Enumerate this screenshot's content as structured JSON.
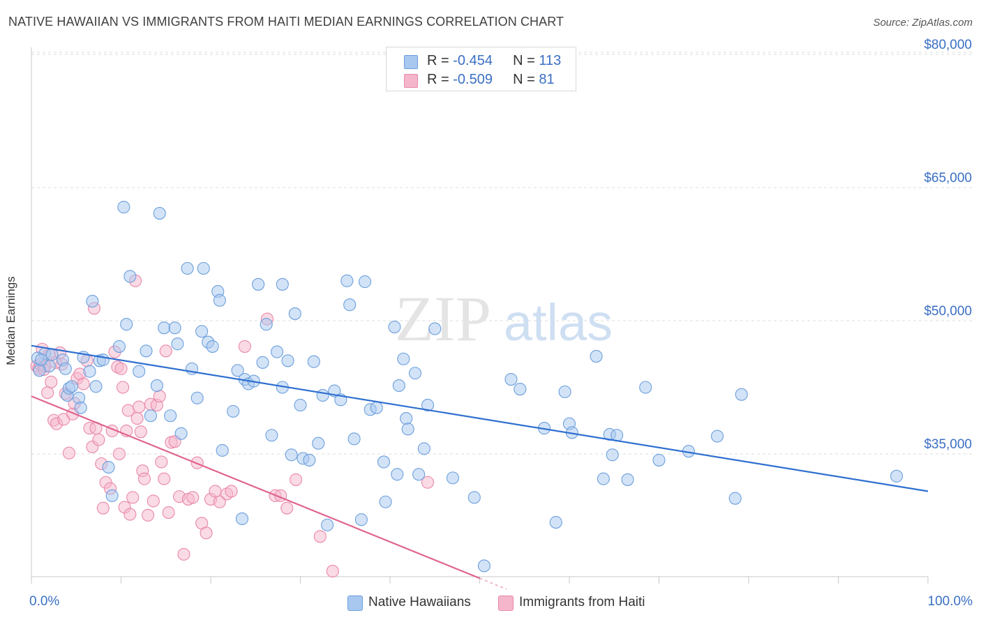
{
  "header": {
    "title": "NATIVE HAWAIIAN VS IMMIGRANTS FROM HAITI MEDIAN EARNINGS CORRELATION CHART",
    "source": "Source: ZipAtlas.com"
  },
  "watermark": {
    "zip": "ZIP",
    "atlas": "atlas"
  },
  "legend_top": [
    {
      "r_label": "R = ",
      "r_value": "-0.454",
      "n_label": "N = ",
      "n_value": "113",
      "color": "#a8c8f0"
    },
    {
      "r_label": "R = ",
      "r_value": "-0.509",
      "n_label": "N = ",
      "n_value": "81",
      "color": "#f5b6cb"
    }
  ],
  "legend_bottom": [
    {
      "label": "Native Hawaiians",
      "color": "#a8c8f0"
    },
    {
      "label": "Immigrants from Haiti",
      "color": "#f5b6cb"
    }
  ],
  "colors": {
    "blue_fill": "#a8c8f0",
    "blue_stroke": "#6b9fdc",
    "blue_line": "#2f6fd0",
    "pink_fill": "#f5b6cb",
    "pink_stroke": "#e888a8",
    "pink_line": "#e0648e",
    "axis_label": "#3a6fc4",
    "grid": "#dcdcdc"
  },
  "chart_data": {
    "type": "scatter",
    "title": "NATIVE HAWAIIAN VS IMMIGRANTS FROM HAITI MEDIAN EARNINGS CORRELATION CHART",
    "xlabel": "",
    "ylabel": "Median Earnings",
    "x_tick_labels": [
      "0.0%",
      "100.0%"
    ],
    "y_tick_labels": [
      "$35,000",
      "$50,000",
      "$65,000",
      "$80,000"
    ],
    "y_ticks": [
      35000,
      50000,
      65000,
      80000
    ],
    "xlim": [
      0,
      100
    ],
    "ylim": [
      20000,
      82500
    ],
    "grid": true,
    "legend_position": "top-center",
    "series": [
      {
        "name": "Native Hawaiians",
        "r": -0.454,
        "n": 113,
        "trend": {
          "x": [
            0,
            100
          ],
          "y": [
            47200,
            30800
          ]
        },
        "points": [
          [
            1.5,
            46.3
          ],
          [
            2,
            44.9
          ],
          [
            2.3,
            46.2
          ],
          [
            3.5,
            45.6
          ],
          [
            3.8,
            44.6
          ],
          [
            4,
            41.6
          ],
          [
            4.2,
            42.4
          ],
          [
            4.5,
            42.6
          ],
          [
            5.3,
            41.3
          ],
          [
            5.5,
            40.2
          ],
          [
            5.8,
            45.9
          ],
          [
            6.5,
            44.3
          ],
          [
            6.8,
            52.2
          ],
          [
            7.2,
            42.6
          ],
          [
            7.6,
            45.5
          ],
          [
            8,
            45.6
          ],
          [
            8.6,
            33.5
          ],
          [
            9,
            30.3
          ],
          [
            9.8,
            47.1
          ],
          [
            10.3,
            62.8
          ],
          [
            10.6,
            49.6
          ],
          [
            11,
            55.0
          ],
          [
            12,
            44.3
          ],
          [
            12.8,
            46.6
          ],
          [
            13.3,
            39.3
          ],
          [
            14,
            42.7
          ],
          [
            14.3,
            62.1
          ],
          [
            14.8,
            49.2
          ],
          [
            15.5,
            39.3
          ],
          [
            16,
            49.2
          ],
          [
            16.3,
            47.4
          ],
          [
            16.7,
            37.3
          ],
          [
            17.4,
            55.9
          ],
          [
            17.9,
            44.6
          ],
          [
            18.5,
            41.3
          ],
          [
            19,
            48.8
          ],
          [
            19.2,
            55.9
          ],
          [
            19.7,
            47.6
          ],
          [
            20.2,
            47.1
          ],
          [
            20.8,
            53.3
          ],
          [
            21,
            52.3
          ],
          [
            21.3,
            35.4
          ],
          [
            22.5,
            39.8
          ],
          [
            23,
            44.4
          ],
          [
            23.5,
            27.7
          ],
          [
            23.8,
            43.4
          ],
          [
            24.2,
            42.9
          ],
          [
            24.8,
            43.2
          ],
          [
            25.3,
            54.1
          ],
          [
            25.8,
            45.3
          ],
          [
            26.2,
            49.6
          ],
          [
            26.8,
            37.1
          ],
          [
            27.4,
            46.5
          ],
          [
            28,
            42.5
          ],
          [
            28,
            54.1
          ],
          [
            28.6,
            45.5
          ],
          [
            29,
            34.9
          ],
          [
            29.4,
            50.8
          ],
          [
            30,
            40.5
          ],
          [
            30.3,
            34.5
          ],
          [
            31,
            34.3
          ],
          [
            31.5,
            45.4
          ],
          [
            32,
            36.2
          ],
          [
            32.5,
            41.6
          ],
          [
            33,
            27.0
          ],
          [
            33.8,
            42.1
          ],
          [
            34.5,
            41.1
          ],
          [
            35.2,
            54.5
          ],
          [
            35.5,
            51.8
          ],
          [
            36,
            36.7
          ],
          [
            36.8,
            27.6
          ],
          [
            37.2,
            54.4
          ],
          [
            37.8,
            40.0
          ],
          [
            38.5,
            40.2
          ],
          [
            39.3,
            34.1
          ],
          [
            39.5,
            29.6
          ],
          [
            40.5,
            49.3
          ],
          [
            40.8,
            32.7
          ],
          [
            41,
            42.7
          ],
          [
            41.5,
            45.7
          ],
          [
            41.8,
            39.0
          ],
          [
            42,
            37.8
          ],
          [
            42.8,
            44.1
          ],
          [
            43.2,
            32.7
          ],
          [
            43.8,
            35.6
          ],
          [
            44.2,
            40.5
          ],
          [
            45,
            49.1
          ],
          [
            47,
            32.3
          ],
          [
            49.4,
            30.1
          ],
          [
            50.5,
            22.4
          ],
          [
            53.5,
            43.4
          ],
          [
            54.5,
            42.3
          ],
          [
            57.2,
            37.9
          ],
          [
            58.5,
            27.3
          ],
          [
            59.5,
            42.0
          ],
          [
            60,
            38.4
          ],
          [
            60.3,
            37.4
          ],
          [
            63,
            46.0
          ],
          [
            63.8,
            32.2
          ],
          [
            64.5,
            37.2
          ],
          [
            64.8,
            34.9
          ],
          [
            65.3,
            37.1
          ],
          [
            66.5,
            32.1
          ],
          [
            68.5,
            42.5
          ],
          [
            70,
            34.3
          ],
          [
            73.3,
            35.3
          ],
          [
            76.5,
            37.0
          ],
          [
            78.5,
            30.0
          ],
          [
            79.2,
            41.7
          ],
          [
            96.5,
            32.5
          ],
          [
            0.7,
            45.8
          ],
          [
            0.9,
            44.4
          ],
          [
            1.1,
            45.6
          ]
        ]
      },
      {
        "name": "Immigrants from Haiti",
        "r": -0.509,
        "n": 81,
        "trend": {
          "x": [
            0,
            50
          ],
          "y": [
            41500,
            21000
          ]
        },
        "points": [
          [
            0.6,
            44.9
          ],
          [
            0.8,
            44.6
          ],
          [
            1,
            45.1
          ],
          [
            1.2,
            46.8
          ],
          [
            1.5,
            44.9
          ],
          [
            1.8,
            41.9
          ],
          [
            2.2,
            43.1
          ],
          [
            2.5,
            38.8
          ],
          [
            2.8,
            38.4
          ],
          [
            3.2,
            46.4
          ],
          [
            3.4,
            45.1
          ],
          [
            3.6,
            38.9
          ],
          [
            3.8,
            41.8
          ],
          [
            4.2,
            35.1
          ],
          [
            4.6,
            39.5
          ],
          [
            4.8,
            40.7
          ],
          [
            5.1,
            43.5
          ],
          [
            5.4,
            44.0
          ],
          [
            5.8,
            42.9
          ],
          [
            6.2,
            45.5
          ],
          [
            6.5,
            37.9
          ],
          [
            6.8,
            35.8
          ],
          [
            7,
            51.4
          ],
          [
            7.2,
            37.9
          ],
          [
            7.5,
            36.6
          ],
          [
            7.8,
            33.9
          ],
          [
            8,
            28.9
          ],
          [
            8.3,
            31.8
          ],
          [
            8.8,
            31.1
          ],
          [
            9,
            37.6
          ],
          [
            9.3,
            46.5
          ],
          [
            9.6,
            44.8
          ],
          [
            9.8,
            35.0
          ],
          [
            10,
            44.6
          ],
          [
            10.2,
            42.5
          ],
          [
            10.4,
            29.0
          ],
          [
            10.6,
            37.6
          ],
          [
            10.8,
            39.9
          ],
          [
            11,
            28.2
          ],
          [
            11.3,
            30.1
          ],
          [
            11.6,
            54.5
          ],
          [
            11.8,
            39.0
          ],
          [
            12,
            40.3
          ],
          [
            12.2,
            37.5
          ],
          [
            12.4,
            33.1
          ],
          [
            12.6,
            32.2
          ],
          [
            13,
            28.1
          ],
          [
            13.3,
            40.6
          ],
          [
            13.6,
            29.7
          ],
          [
            14,
            40.5
          ],
          [
            14.3,
            41.5
          ],
          [
            14.5,
            34.1
          ],
          [
            14.8,
            32.2
          ],
          [
            15,
            46.6
          ],
          [
            15.3,
            28.4
          ],
          [
            15.6,
            36.3
          ],
          [
            16,
            36.4
          ],
          [
            16.5,
            30.2
          ],
          [
            17,
            23.7
          ],
          [
            17.5,
            29.9
          ],
          [
            18,
            30.1
          ],
          [
            18.5,
            34.0
          ],
          [
            19,
            27.2
          ],
          [
            19.5,
            26.1
          ],
          [
            20,
            29.9
          ],
          [
            20.5,
            30.8
          ],
          [
            21,
            29.6
          ],
          [
            21.8,
            30.5
          ],
          [
            22.3,
            30.8
          ],
          [
            23.8,
            47.1
          ],
          [
            26.3,
            50.2
          ],
          [
            27.2,
            30.3
          ],
          [
            27.8,
            30.3
          ],
          [
            28.5,
            28.9
          ],
          [
            29.5,
            32.1
          ],
          [
            32.2,
            25.7
          ],
          [
            33.6,
            21.8
          ],
          [
            44.2,
            31.8
          ],
          [
            1.4,
            44.5
          ],
          [
            2.0,
            46.2
          ],
          [
            2.7,
            45.3
          ]
        ]
      }
    ]
  }
}
